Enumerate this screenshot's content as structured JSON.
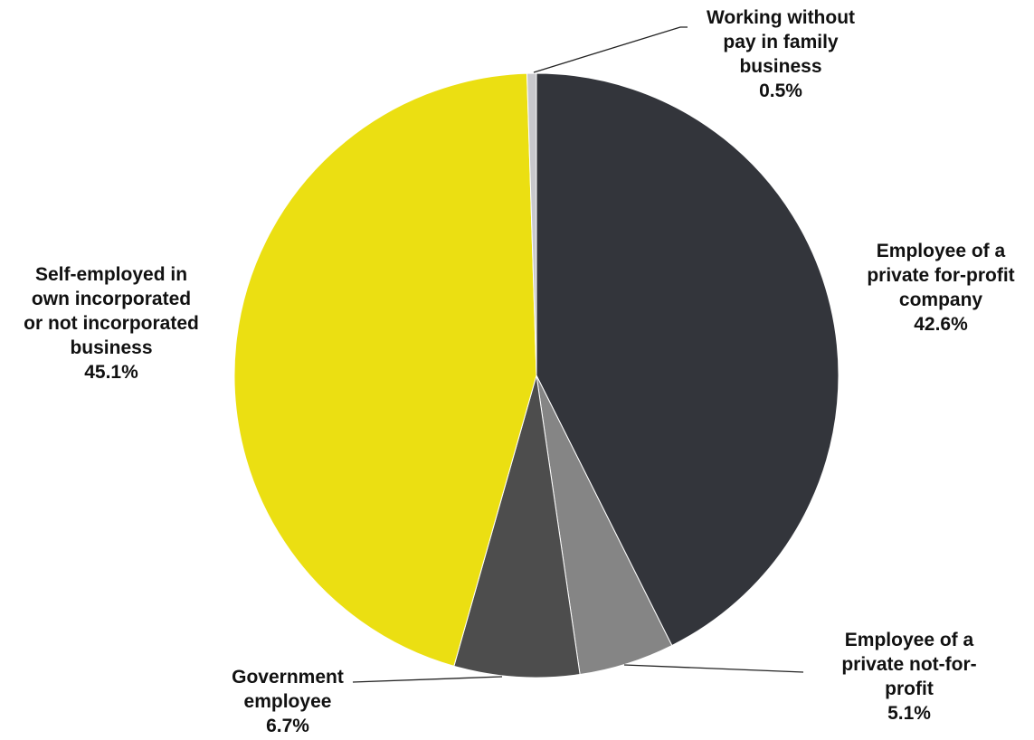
{
  "chart_data": {
    "type": "pie",
    "title": "",
    "slices": [
      {
        "label_lines": [
          "Employee of a",
          "private for-profit",
          "company"
        ],
        "label": "Employee of a private for-profit company",
        "value_text": "42.6%",
        "value": 42.6,
        "color": "#33353b"
      },
      {
        "label_lines": [
          "Employee of a",
          "private not-for-",
          "profit"
        ],
        "label": "Employee of a private not-for-profit",
        "value_text": "5.1%",
        "value": 5.1,
        "color": "#858585"
      },
      {
        "label_lines": [
          "Government",
          "employee"
        ],
        "label": "Government employee",
        "value_text": "6.7%",
        "value": 6.7,
        "color": "#4d4d4d"
      },
      {
        "label_lines": [
          "Self-employed in",
          "own incorporated",
          "or not incorporated",
          "business"
        ],
        "label": "Self-employed in own incorporated or not incorporated business",
        "value_text": "45.1%",
        "value": 45.1,
        "color": "#ebdf12"
      },
      {
        "label_lines": [
          "Working without",
          "pay in family",
          "business"
        ],
        "label": "Working without pay in family business",
        "value_text": "0.5%",
        "value": 0.5,
        "color": "#c8c8cc"
      }
    ],
    "start_angle": "12 o'clock",
    "direction": "clockwise",
    "legend": "none",
    "data_labels": "outside"
  }
}
